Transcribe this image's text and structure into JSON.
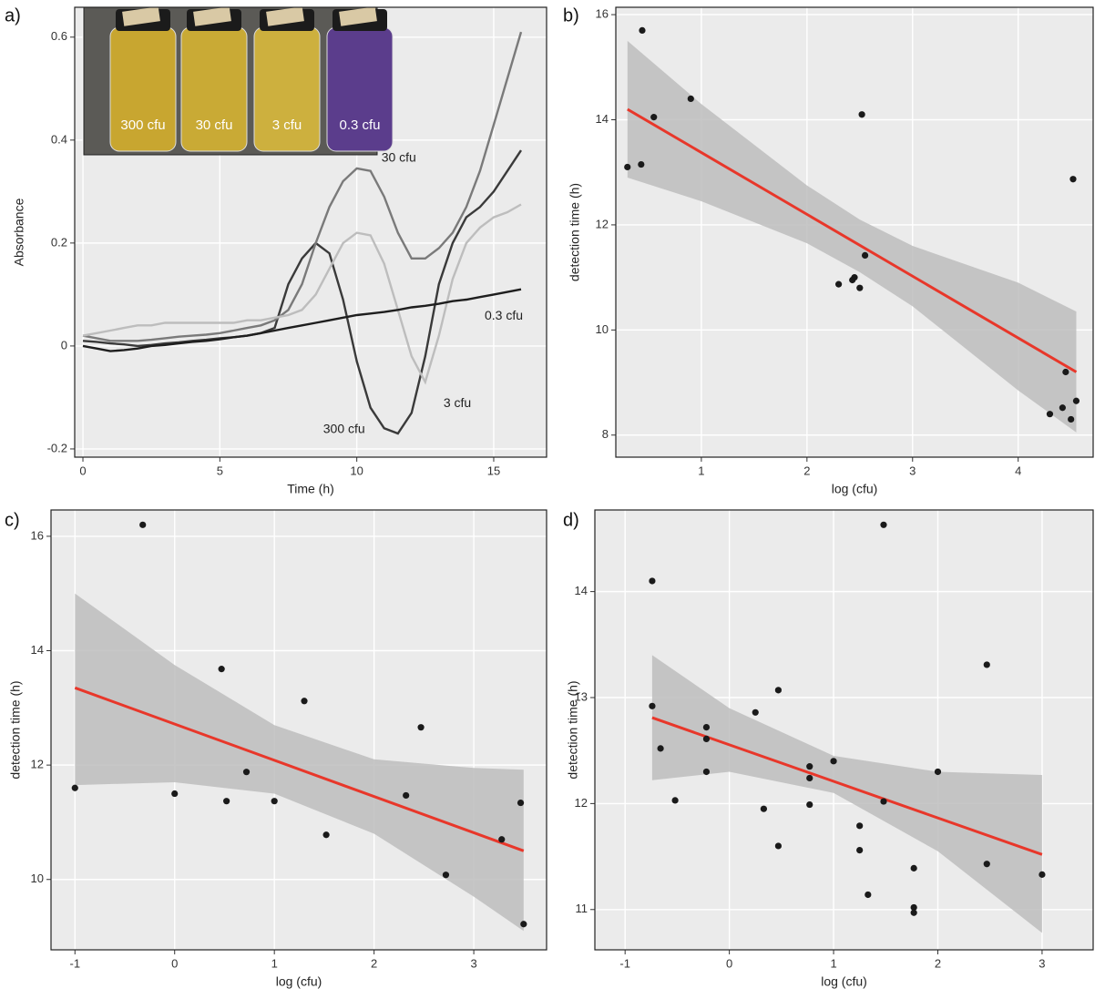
{
  "chart_data": [
    {
      "type": "line",
      "panel_label": "a)",
      "x_label": "Time (h)",
      "y_label": "Absorbance",
      "xlim": [
        -0.3,
        16.93
      ],
      "ylim": [
        -0.216,
        0.658
      ],
      "xticks": [
        0,
        5,
        10,
        15
      ],
      "yticks": [
        -0.2,
        0,
        0.2,
        0.4,
        0.6
      ],
      "grid": true,
      "inset_labels": [
        "300 cfu",
        "30 cfu",
        "3 cfu",
        "0.3 cfu"
      ],
      "x": [
        0,
        0.5,
        1,
        1.5,
        2,
        2.5,
        3,
        3.5,
        4,
        4.5,
        5,
        5.5,
        6,
        6.5,
        7,
        7.5,
        8,
        8.5,
        9,
        9.5,
        10,
        10.5,
        11,
        11.5,
        12,
        12.5,
        13,
        13.5,
        14,
        14.5,
        15,
        15.5,
        16
      ],
      "series": [
        {
          "name": "300 cfu",
          "color": "#3a3a3a",
          "values": [
            0.01,
            0.008,
            0.005,
            0.003,
            0.0,
            0.002,
            0.005,
            0.007,
            0.01,
            0.012,
            0.015,
            0.017,
            0.02,
            0.025,
            0.035,
            0.12,
            0.17,
            0.2,
            0.18,
            0.09,
            -0.03,
            -0.12,
            -0.16,
            -0.17,
            -0.13,
            -0.02,
            0.12,
            0.2,
            0.25,
            0.27,
            0.3,
            0.34,
            0.38
          ]
        },
        {
          "name": "30 cfu",
          "color": "#7a7a7a",
          "values": [
            0.02,
            0.015,
            0.01,
            0.01,
            0.01,
            0.012,
            0.015,
            0.018,
            0.02,
            0.022,
            0.025,
            0.03,
            0.035,
            0.04,
            0.05,
            0.07,
            0.12,
            0.2,
            0.27,
            0.32,
            0.345,
            0.34,
            0.29,
            0.22,
            0.17,
            0.17,
            0.19,
            0.22,
            0.27,
            0.34,
            0.43,
            0.52,
            0.61
          ]
        },
        {
          "name": "3 cfu",
          "color": "#bdbdbd",
          "values": [
            0.02,
            0.025,
            0.03,
            0.035,
            0.04,
            0.04,
            0.045,
            0.045,
            0.045,
            0.045,
            0.045,
            0.045,
            0.05,
            0.05,
            0.055,
            0.06,
            0.07,
            0.1,
            0.15,
            0.2,
            0.22,
            0.215,
            0.16,
            0.07,
            -0.02,
            -0.07,
            0.02,
            0.13,
            0.2,
            0.23,
            0.25,
            0.26,
            0.275
          ]
        },
        {
          "name": "0.3 cfu",
          "color": "#1e1e1e",
          "values": [
            0.0,
            -0.005,
            -0.01,
            -0.008,
            -0.005,
            0.0,
            0.002,
            0.005,
            0.008,
            0.01,
            0.013,
            0.017,
            0.02,
            0.025,
            0.03,
            0.035,
            0.04,
            0.045,
            0.05,
            0.055,
            0.06,
            0.063,
            0.066,
            0.07,
            0.075,
            0.078,
            0.082,
            0.087,
            0.09,
            0.095,
            0.1,
            0.105,
            0.11
          ]
        }
      ]
    },
    {
      "type": "scatter",
      "panel_label": "b)",
      "x_label": "log (cfu)",
      "y_label": "detection time (h)",
      "xlim": [
        0.19,
        4.71
      ],
      "ylim": [
        7.58,
        16.14
      ],
      "xticks": [
        1,
        2,
        3,
        4
      ],
      "yticks": [
        8,
        10,
        12,
        14,
        16
      ],
      "grid": true,
      "color": "#1a1a1a",
      "fit_color": "#e8372a",
      "band_color": "#bdbdbd",
      "x": [
        0.3,
        0.43,
        0.44,
        0.55,
        0.9,
        2.3,
        2.43,
        2.45,
        2.5,
        2.52,
        2.55,
        4.3,
        4.42,
        4.45,
        4.5,
        4.52,
        4.55
      ],
      "values": [
        13.1,
        13.15,
        15.7,
        14.05,
        14.4,
        10.87,
        10.95,
        11.0,
        10.8,
        14.1,
        11.42,
        8.4,
        8.52,
        9.2,
        8.3,
        12.87,
        8.65
      ],
      "fit": {
        "x": [
          0.3,
          4.55
        ],
        "y": [
          14.2,
          9.2
        ]
      },
      "band": {
        "x": [
          0.3,
          1,
          2,
          2.5,
          3,
          4,
          4.55
        ],
        "upper": [
          15.5,
          14.3,
          12.75,
          12.1,
          11.6,
          10.9,
          10.35
        ],
        "lower": [
          12.9,
          12.45,
          11.65,
          11.1,
          10.45,
          8.85,
          8.05
        ]
      }
    },
    {
      "type": "scatter",
      "panel_label": "c)",
      "x_label": "log (cfu)",
      "y_label": "detection time (h)",
      "xlim": [
        -1.24,
        3.73
      ],
      "ylim": [
        8.77,
        16.46
      ],
      "xticks": [
        -1,
        0,
        1,
        2,
        3
      ],
      "yticks": [
        10,
        12,
        14,
        16
      ],
      "grid": true,
      "color": "#1a1a1a",
      "fit_color": "#e8372a",
      "band_color": "#bdbdbd",
      "x": [
        -1,
        -0.32,
        0,
        0.47,
        0.52,
        0.72,
        1,
        1.3,
        1.52,
        2.32,
        2.47,
        2.72,
        3.28,
        3.47,
        3.5
      ],
      "values": [
        11.6,
        16.2,
        11.5,
        13.68,
        11.37,
        11.88,
        11.37,
        13.12,
        10.78,
        11.47,
        12.66,
        10.08,
        10.7,
        11.34,
        9.22
      ],
      "fit": {
        "x": [
          -1,
          3.5
        ],
        "y": [
          13.35,
          10.5
        ]
      },
      "band": {
        "x": [
          -1,
          0,
          1,
          2,
          3,
          3.5
        ],
        "upper": [
          15.0,
          13.75,
          12.7,
          12.1,
          11.95,
          11.92
        ],
        "lower": [
          11.65,
          11.7,
          11.5,
          10.8,
          9.7,
          9.1
        ]
      }
    },
    {
      "type": "scatter",
      "panel_label": "d)",
      "x_label": "log (cfu)",
      "y_label": "detection time (h)",
      "xlim": [
        -1.29,
        3.49
      ],
      "ylim": [
        10.62,
        14.77
      ],
      "xticks": [
        -1,
        0,
        1,
        2,
        3
      ],
      "yticks": [
        11,
        12,
        13,
        14
      ],
      "grid": true,
      "color": "#1a1a1a",
      "fit_color": "#e8372a",
      "band_color": "#bdbdbd",
      "x": [
        -0.74,
        -0.74,
        -0.66,
        -0.52,
        -0.22,
        -0.22,
        -0.22,
        0.25,
        0.33,
        0.47,
        0.47,
        0.77,
        0.77,
        0.77,
        1.0,
        1.25,
        1.25,
        1.33,
        1.48,
        1.48,
        1.77,
        1.77,
        1.77,
        2.0,
        2.47,
        2.47,
        3.0
      ],
      "values": [
        14.1,
        12.92,
        12.52,
        12.03,
        12.72,
        12.61,
        12.3,
        12.86,
        11.95,
        13.07,
        11.6,
        12.35,
        12.24,
        11.99,
        12.4,
        11.79,
        11.56,
        11.14,
        12.02,
        14.63,
        11.39,
        11.02,
        10.97,
        12.3,
        13.31,
        11.43,
        11.33
      ],
      "fit": {
        "x": [
          -0.74,
          3
        ],
        "y": [
          12.81,
          11.52
        ]
      },
      "band": {
        "x": [
          -0.74,
          0,
          1,
          2,
          3
        ],
        "upper": [
          13.4,
          12.9,
          12.45,
          12.3,
          12.27
        ],
        "lower": [
          12.22,
          12.3,
          12.1,
          11.55,
          10.78
        ]
      }
    }
  ]
}
